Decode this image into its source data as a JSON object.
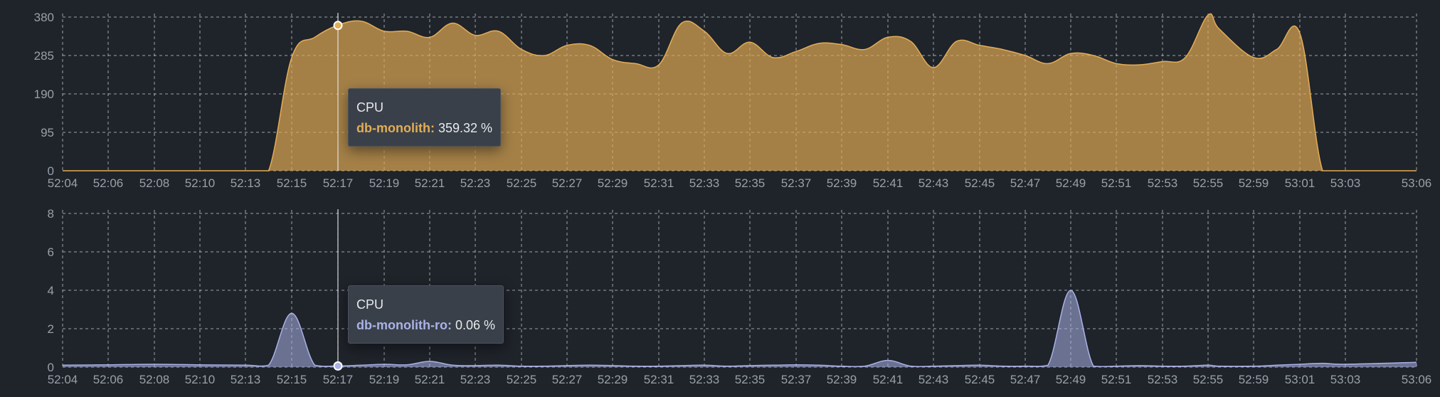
{
  "colors": {
    "background": "#1f232a",
    "cpu_series": "#e3ad55",
    "ro_series": "#aab2e6",
    "tooltip_bg": "#394049"
  },
  "chart_data": [
    {
      "type": "area",
      "series": [
        {
          "name": "db-monolith",
          "color": "#e3ad55",
          "x": [
            "52:04",
            "52:06",
            "52:08",
            "52:10",
            "52:13",
            "52:14",
            "52:15",
            "52:16",
            "52:17",
            "52:18",
            "52:19",
            "52:20",
            "52:21",
            "52:22",
            "52:23",
            "52:24",
            "52:25",
            "52:26",
            "52:27",
            "52:28",
            "52:29",
            "52:30",
            "52:31",
            "52:32",
            "52:33",
            "52:34",
            "52:35",
            "52:36",
            "52:37",
            "52:38",
            "52:39",
            "52:40",
            "52:41",
            "52:42",
            "52:43",
            "52:44",
            "52:45",
            "52:46",
            "52:47",
            "52:48",
            "52:49",
            "52:50",
            "52:51",
            "52:52",
            "52:53",
            "52:54",
            "52:55",
            "52:56",
            "52:59",
            "53:00",
            "53:01",
            "53:02",
            "53:03",
            "53:06"
          ],
          "values": [
            0,
            0,
            0,
            0,
            0,
            0,
            280,
            330,
            360,
            370,
            345,
            345,
            330,
            365,
            335,
            345,
            300,
            285,
            310,
            310,
            275,
            265,
            262,
            365,
            345,
            290,
            318,
            280,
            295,
            315,
            312,
            300,
            330,
            320,
            255,
            320,
            310,
            300,
            285,
            265,
            290,
            285,
            265,
            262,
            270,
            280,
            385,
            350,
            280,
            300,
            340,
            0,
            0,
            0
          ]
        }
      ],
      "x_ticks": [
        "52:04",
        "52:06",
        "52:08",
        "52:10",
        "52:13",
        "52:15",
        "52:17",
        "52:19",
        "52:21",
        "52:23",
        "52:25",
        "52:27",
        "52:29",
        "52:31",
        "52:33",
        "52:35",
        "52:37",
        "52:39",
        "52:41",
        "52:43",
        "52:45",
        "52:47",
        "52:49",
        "52:51",
        "52:53",
        "52:55",
        "52:59",
        "53:01",
        "53:03",
        "53:06"
      ],
      "y_ticks": [
        "0",
        "95",
        "190",
        "285",
        "380"
      ],
      "ylim": [
        0,
        380
      ],
      "grid": true,
      "tooltip": {
        "title": "CPU",
        "series_label": "db-monolith:",
        "value_text": "359.32 %",
        "x": "52:17",
        "y": 359.32
      }
    },
    {
      "type": "area",
      "series": [
        {
          "name": "db-monolith-ro",
          "color": "#aab2e6",
          "x": [
            "52:04",
            "52:06",
            "52:08",
            "52:10",
            "52:13",
            "52:14",
            "52:15",
            "52:16",
            "52:17",
            "52:18",
            "52:19",
            "52:20",
            "52:21",
            "52:22",
            "52:23",
            "52:24",
            "52:25",
            "52:26",
            "52:27",
            "52:28",
            "52:29",
            "52:30",
            "52:31",
            "52:32",
            "52:33",
            "52:34",
            "52:35",
            "52:36",
            "52:37",
            "52:38",
            "52:39",
            "52:40",
            "52:41",
            "52:42",
            "52:43",
            "52:44",
            "52:45",
            "52:46",
            "52:47",
            "52:48",
            "52:49",
            "52:50",
            "52:51",
            "52:52",
            "52:53",
            "52:54",
            "52:55",
            "52:56",
            "52:59",
            "53:00",
            "53:01",
            "53:02",
            "53:03",
            "53:06"
          ],
          "values": [
            0.1,
            0.12,
            0.15,
            0.12,
            0.1,
            0.1,
            2.8,
            0.1,
            0.06,
            0.1,
            0.15,
            0.12,
            0.3,
            0.1,
            0.08,
            0.1,
            0.05,
            0.05,
            0.08,
            0.1,
            0.08,
            0.05,
            0.05,
            0.08,
            0.1,
            0.05,
            0.08,
            0.1,
            0.12,
            0.1,
            0.05,
            0.05,
            0.35,
            0.05,
            0.05,
            0.08,
            0.1,
            0.05,
            0.05,
            0.1,
            4.0,
            0.05,
            0.05,
            0.08,
            0.05,
            0.05,
            0.1,
            0.05,
            0.05,
            0.1,
            0.15,
            0.2,
            0.15,
            0.25
          ]
        }
      ],
      "x_ticks": [
        "52:04",
        "52:06",
        "52:08",
        "52:10",
        "52:13",
        "52:15",
        "52:17",
        "52:19",
        "52:21",
        "52:23",
        "52:25",
        "52:27",
        "52:29",
        "52:31",
        "52:33",
        "52:35",
        "52:37",
        "52:39",
        "52:41",
        "52:43",
        "52:45",
        "52:47",
        "52:49",
        "52:51",
        "52:53",
        "52:55",
        "52:59",
        "53:01",
        "53:03",
        "53:06"
      ],
      "y_ticks": [
        "0",
        "2",
        "4",
        "6",
        "8"
      ],
      "ylim": [
        0,
        8
      ],
      "grid": true,
      "tooltip": {
        "title": "CPU",
        "series_label": "db-monolith-ro:",
        "value_text": "0.06 %",
        "x": "52:17",
        "y": 0.06
      }
    }
  ]
}
